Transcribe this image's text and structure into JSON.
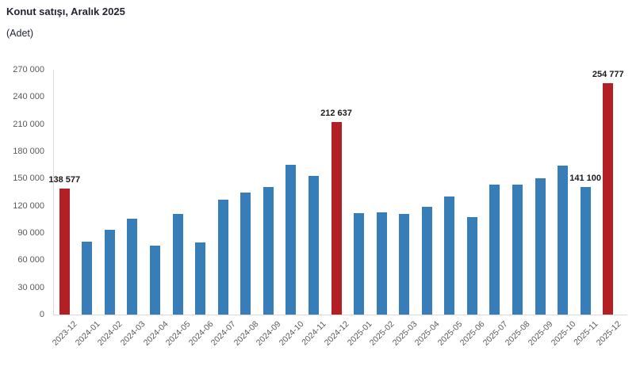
{
  "header": {
    "title": "Konut satışı, Aralık 2025",
    "subtitle": "(Adet)"
  },
  "chart_data": {
    "type": "bar",
    "title": "Konut satışı, Aralık 2025",
    "unit_label": "(Adet)",
    "categories": [
      "2023-12",
      "2024-01",
      "2024-02",
      "2024-03",
      "2024-04",
      "2024-05",
      "2024-06",
      "2024-07",
      "2024-08",
      "2024-09",
      "2024-10",
      "2024-11",
      "2024-12",
      "2025-01",
      "2025-02",
      "2025-03",
      "2025-04",
      "2025-05",
      "2025-06",
      "2025-07",
      "2025-08",
      "2025-09",
      "2025-10",
      "2025-11",
      "2025-12"
    ],
    "values": [
      138577,
      80300,
      93900,
      105500,
      75600,
      110600,
      79300,
      127100,
      134200,
      140900,
      165100,
      153000,
      212637,
      112200,
      112800,
      110800,
      118400,
      130000,
      107700,
      142900,
      143300,
      150700,
      164300,
      141100,
      254777
    ],
    "highlight_indices": [
      0,
      12,
      24
    ],
    "data_labels": [
      {
        "index": 0,
        "text": "138 577"
      },
      {
        "index": 12,
        "text": "212 637"
      },
      {
        "index": 23,
        "text": "141 100"
      },
      {
        "index": 24,
        "text": "254 777"
      }
    ],
    "ylim": [
      0,
      270000
    ],
    "ytick_step": 30000,
    "ytick_labels": [
      "0",
      "30 000",
      "60 000",
      "90 000",
      "120 000",
      "150 000",
      "180 000",
      "210 000",
      "240 000",
      "270 000"
    ],
    "xlabel": "",
    "ylabel": "",
    "grid": false,
    "legend": false,
    "colors": {
      "bar": "#377db8",
      "highlight": "#b22026",
      "axis_line": "#d9d9d9",
      "tick_text": "#595959",
      "value_label_text": "#1a1a1a",
      "title_text": "#1f2430",
      "background": "#ffffff"
    }
  }
}
